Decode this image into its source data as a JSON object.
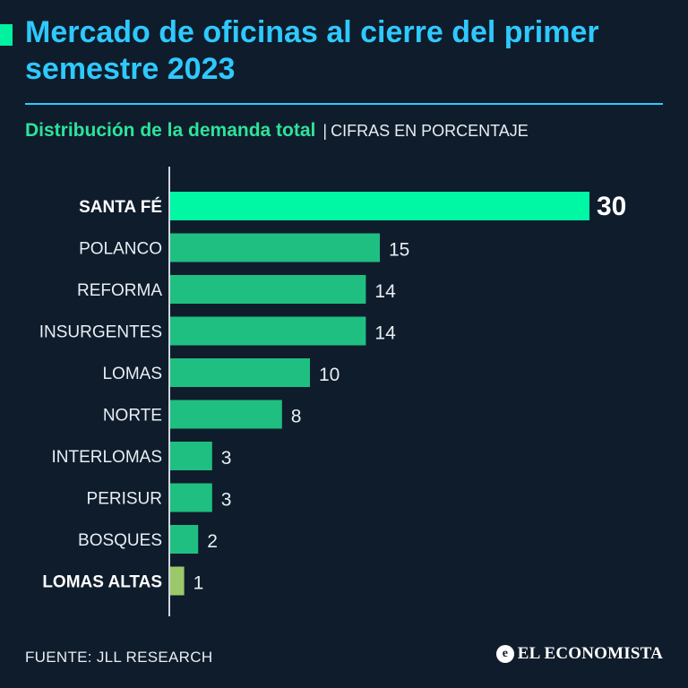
{
  "header": {
    "title": "Mercado de oficinas al cierre del primer semestre 2023",
    "subtitle": "Distribución de la demanda total",
    "separator": "|",
    "unit_note": "CIFRAS EN PORCENTAJE"
  },
  "colors": {
    "background": "#0f1c2b",
    "title": "#2ec9ff",
    "subtitle": "#2de39a",
    "highlight_bar": "#00f7a4",
    "bar": "#1fbf82",
    "low_bar": "#9bc86a",
    "text": "#e8eef4"
  },
  "chart_data": {
    "type": "bar",
    "orientation": "horizontal",
    "title": "Distribución de la demanda total",
    "unit": "CIFRAS EN PORCENTAJE",
    "categories": [
      "SANTA FÉ",
      "POLANCO",
      "REFORMA",
      "INSURGENTES",
      "LOMAS",
      "NORTE",
      "INTERLOMAS",
      "PERISUR",
      "BOSQUES",
      "LOMAS ALTAS"
    ],
    "values": [
      30,
      15,
      14,
      14,
      10,
      8,
      3,
      3,
      2,
      1
    ],
    "emphasized": [
      "SANTA FÉ",
      "LOMAS ALTAS"
    ],
    "xlim": [
      0,
      30
    ],
    "grid": false,
    "legend": "none"
  },
  "footer": {
    "source": "FUENTE: JLL RESEARCH",
    "brand_icon_glyph": "e",
    "brand": "EL ECONOMISTA"
  }
}
